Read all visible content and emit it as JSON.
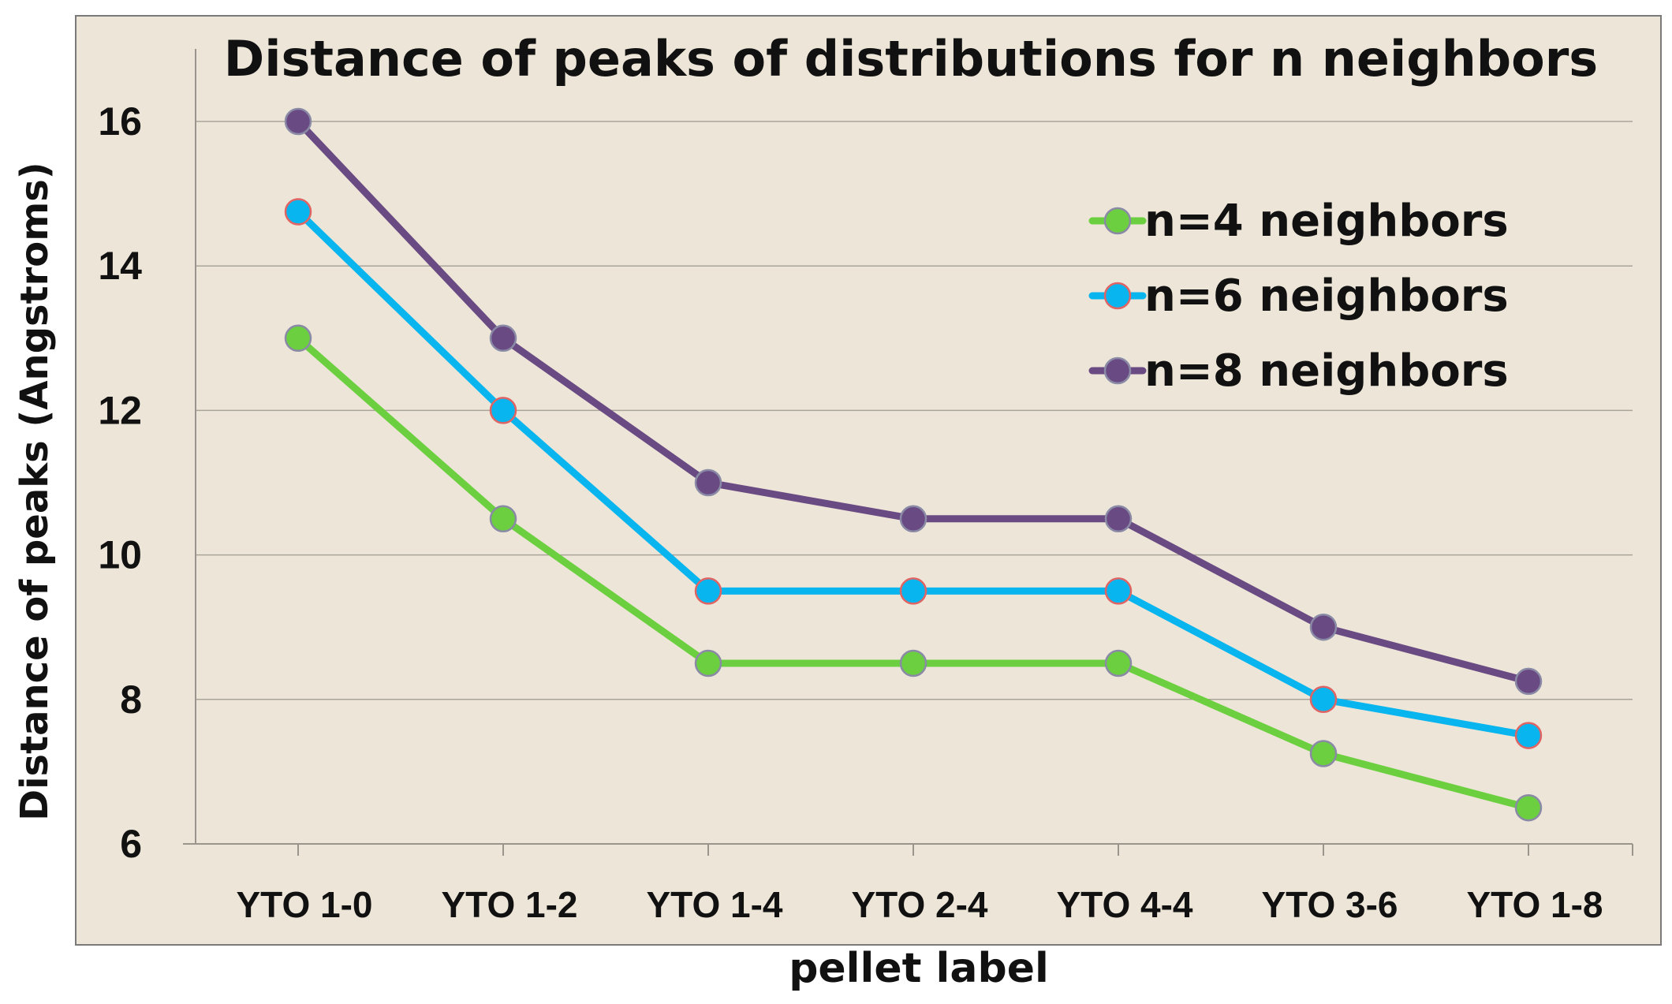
{
  "chart_data": {
    "type": "line",
    "title": "Distance of peaks of distributions for n neighbors",
    "xlabel": "pellet label",
    "ylabel": "Distance of peaks (Angstroms)",
    "categories": [
      "YTO 1-0",
      "YTO 1-2",
      "YTO 1-4",
      "YTO 2-4",
      "YTO 4-4",
      "YTO 3-6",
      "YTO 1-8"
    ],
    "ylim": [
      6,
      17
    ],
    "yticks": [
      "6",
      "8",
      "10",
      "12",
      "14",
      "16"
    ],
    "grid": true,
    "legend_position": "top-right",
    "series": [
      {
        "name": "n=4 neighbors",
        "color": "#6ccf3f",
        "values": [
          13,
          10.5,
          8.5,
          8.5,
          8.5,
          7.25,
          6.5
        ]
      },
      {
        "name": "n=6 neighbors",
        "color": "#09b5ee",
        "values": [
          14.75,
          12,
          9.5,
          9.5,
          9.5,
          8,
          7.5
        ]
      },
      {
        "name": "n=8 neighbors",
        "color": "#6a4a82",
        "values": [
          16,
          13,
          11,
          10.5,
          10.5,
          9,
          8.25
        ]
      }
    ]
  }
}
